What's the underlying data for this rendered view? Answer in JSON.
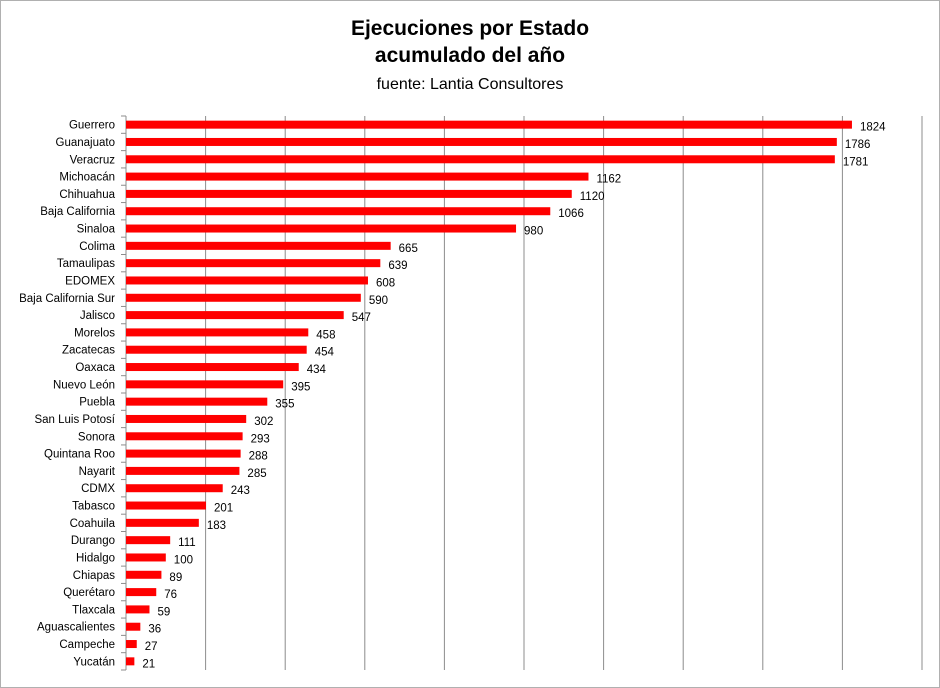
{
  "chart_data": {
    "type": "bar",
    "orientation": "horizontal",
    "title": "Ejecuciones por Estado",
    "title_line2": "acumulado del año",
    "subtitle": "fuente: Lantia Consultores",
    "categories": [
      "Guerrero",
      "Guanajuato",
      "Veracruz",
      "Michoacán",
      "Chihuahua",
      "Baja California",
      "Sinaloa",
      "Colima",
      "Tamaulipas",
      "EDOMEX",
      "Baja California Sur",
      "Jalisco",
      "Morelos",
      "Zacatecas",
      "Oaxaca",
      "Nuevo León",
      "Puebla",
      "San Luis Potosí",
      "Sonora",
      "Quintana Roo",
      "Nayarit",
      "CDMX",
      "Tabasco",
      "Coahuila",
      "Durango",
      "Hidalgo",
      "Chiapas",
      "Querétaro",
      "Tlaxcala",
      "Aguascalientes",
      "Campeche",
      "Yucatán"
    ],
    "values": [
      1824,
      1786,
      1781,
      1162,
      1120,
      1066,
      980,
      665,
      639,
      608,
      590,
      547,
      458,
      454,
      434,
      395,
      355,
      302,
      293,
      288,
      285,
      243,
      201,
      183,
      111,
      100,
      89,
      76,
      59,
      36,
      27,
      21
    ],
    "xlim": [
      0,
      2000
    ],
    "grid": true,
    "legend": "none",
    "bar_color": "#ff0000"
  }
}
